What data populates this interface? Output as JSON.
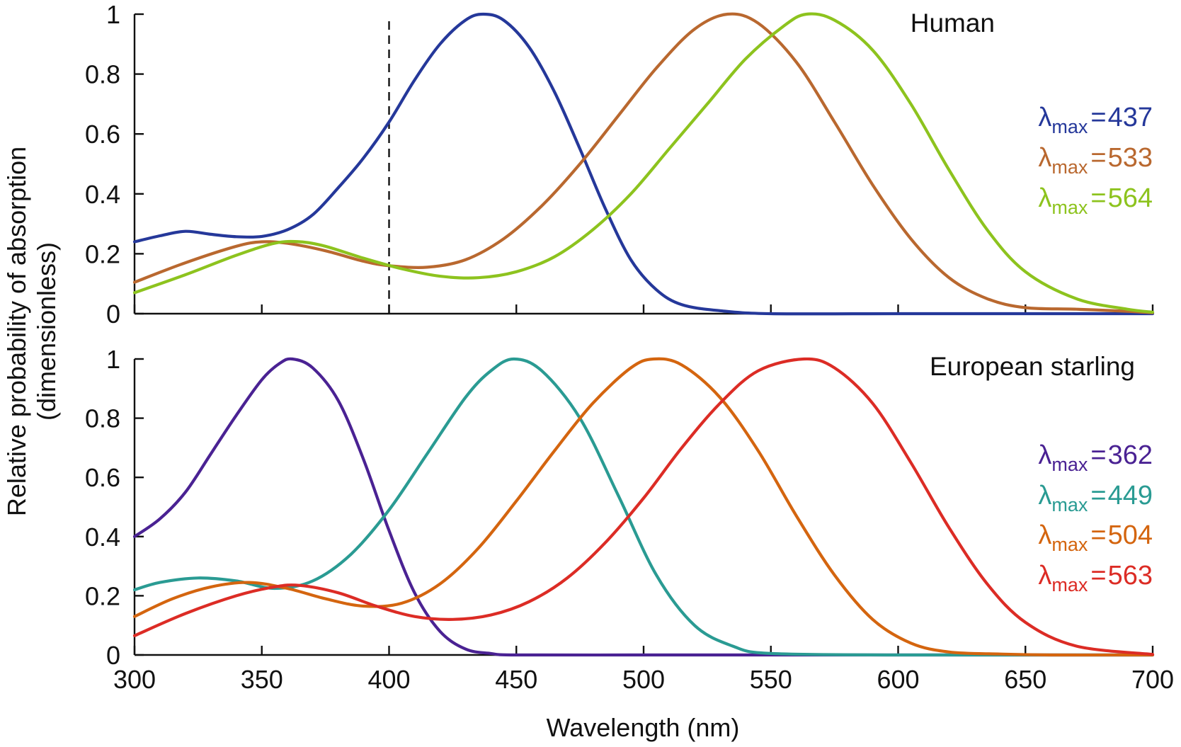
{
  "figure": {
    "ylabel_line1": "Relative  probability of absorption",
    "ylabel_line2": "(dimensionless)",
    "xlabel": "Wavelength (nm)"
  },
  "chart_data": [
    {
      "type": "line",
      "title": "Human",
      "xlabel": "Wavelength (nm)",
      "ylabel": "Relative  probability of absorption (dimensionless)",
      "xlim": [
        300,
        700
      ],
      "ylim": [
        0,
        1
      ],
      "x_ticks": [
        300,
        350,
        400,
        450,
        500,
        550,
        600,
        650,
        700
      ],
      "y_ticks": [
        "0",
        "0.2",
        "0.4",
        "0.6",
        "0.8",
        "1"
      ],
      "reference_line_x": 400,
      "legend_position": "right",
      "series": [
        {
          "label": "λmax = 437",
          "lambda_max": "437",
          "color": "#25389a",
          "x": [
            300,
            310,
            320,
            330,
            340,
            350,
            360,
            370,
            380,
            390,
            400,
            410,
            420,
            430,
            437,
            445,
            455,
            465,
            475,
            485,
            495,
            505,
            515,
            530,
            550,
            600,
            650,
            700
          ],
          "y": [
            0.24,
            0.26,
            0.275,
            0.265,
            0.257,
            0.258,
            0.28,
            0.33,
            0.42,
            0.52,
            0.64,
            0.78,
            0.9,
            0.98,
            1.0,
            0.98,
            0.89,
            0.74,
            0.55,
            0.35,
            0.18,
            0.08,
            0.03,
            0.01,
            0.0,
            0.0,
            0.0,
            0.0
          ]
        },
        {
          "label": "λmax = 533",
          "lambda_max": "533",
          "color": "#b9682f",
          "x": [
            300,
            320,
            340,
            350,
            360,
            375,
            390,
            400,
            415,
            430,
            445,
            460,
            475,
            490,
            505,
            520,
            533,
            545,
            560,
            575,
            590,
            605,
            620,
            635,
            650,
            670,
            690,
            700
          ],
          "y": [
            0.105,
            0.17,
            0.225,
            0.24,
            0.235,
            0.21,
            0.175,
            0.16,
            0.155,
            0.18,
            0.25,
            0.36,
            0.5,
            0.66,
            0.82,
            0.95,
            1.0,
            0.97,
            0.84,
            0.64,
            0.43,
            0.25,
            0.12,
            0.05,
            0.02,
            0.015,
            0.008,
            0.003
          ]
        },
        {
          "label": "λmax = 564",
          "lambda_max": "564",
          "color": "#8dc31e",
          "x": [
            300,
            320,
            340,
            355,
            365,
            375,
            390,
            405,
            420,
            435,
            450,
            465,
            480,
            495,
            510,
            525,
            540,
            555,
            564,
            575,
            590,
            605,
            620,
            635,
            650,
            670,
            690,
            700
          ],
          "y": [
            0.07,
            0.13,
            0.195,
            0.235,
            0.24,
            0.225,
            0.185,
            0.15,
            0.125,
            0.12,
            0.14,
            0.19,
            0.28,
            0.4,
            0.55,
            0.7,
            0.85,
            0.96,
            1.0,
            0.98,
            0.88,
            0.7,
            0.48,
            0.28,
            0.14,
            0.05,
            0.015,
            0.005
          ]
        }
      ]
    },
    {
      "type": "line",
      "title": "European starling",
      "xlabel": "Wavelength (nm)",
      "ylabel": "Relative  probability of absorption (dimensionless)",
      "xlim": [
        300,
        700
      ],
      "ylim": [
        0,
        1
      ],
      "x_ticks": [
        300,
        350,
        400,
        450,
        500,
        550,
        600,
        650,
        700
      ],
      "y_ticks": [
        "0",
        "0.2",
        "0.4",
        "0.6",
        "0.8",
        "1"
      ],
      "legend_position": "right",
      "series": [
        {
          "label": "λmax = 362",
          "lambda_max": "362",
          "color": "#4a2293",
          "x": [
            300,
            310,
            320,
            330,
            340,
            350,
            357,
            362,
            370,
            380,
            390,
            400,
            410,
            420,
            430,
            440,
            450,
            500,
            550,
            600,
            650,
            700
          ],
          "y": [
            0.4,
            0.46,
            0.55,
            0.68,
            0.81,
            0.93,
            0.985,
            1.0,
            0.97,
            0.86,
            0.66,
            0.42,
            0.21,
            0.08,
            0.02,
            0.005,
            0.0,
            0.0,
            0.0,
            0.0,
            0.0,
            0.0
          ]
        },
        {
          "label": "λmax = 449",
          "lambda_max": "449",
          "color": "#2a9b93",
          "x": [
            300,
            310,
            325,
            340,
            355,
            370,
            385,
            400,
            415,
            430,
            440,
            449,
            460,
            475,
            490,
            505,
            520,
            535,
            550,
            600,
            650,
            700
          ],
          "y": [
            0.22,
            0.245,
            0.26,
            0.25,
            0.225,
            0.25,
            0.34,
            0.49,
            0.68,
            0.87,
            0.96,
            1.0,
            0.96,
            0.8,
            0.54,
            0.27,
            0.1,
            0.03,
            0.005,
            0.0,
            0.0,
            0.0
          ]
        },
        {
          "label": "λmax = 504",
          "lambda_max": "504",
          "color": "#d4650f",
          "x": [
            300,
            315,
            330,
            345,
            360,
            375,
            390,
            405,
            420,
            435,
            450,
            465,
            480,
            495,
            504,
            515,
            530,
            545,
            560,
            575,
            590,
            605,
            620,
            640,
            660,
            700
          ],
          "y": [
            0.13,
            0.19,
            0.23,
            0.245,
            0.225,
            0.19,
            0.165,
            0.175,
            0.24,
            0.36,
            0.52,
            0.69,
            0.85,
            0.97,
            1.0,
            0.98,
            0.87,
            0.69,
            0.47,
            0.27,
            0.12,
            0.04,
            0.01,
            0.003,
            0.0,
            0.0
          ]
        },
        {
          "label": "λmax = 563",
          "lambda_max": "563",
          "color": "#dc2c25",
          "x": [
            300,
            320,
            340,
            355,
            365,
            380,
            395,
            410,
            425,
            440,
            455,
            470,
            485,
            500,
            515,
            530,
            545,
            563,
            575,
            590,
            605,
            620,
            635,
            650,
            670,
            700
          ],
          "y": [
            0.065,
            0.14,
            0.2,
            0.23,
            0.235,
            0.21,
            0.165,
            0.13,
            0.12,
            0.135,
            0.18,
            0.26,
            0.38,
            0.53,
            0.7,
            0.85,
            0.96,
            1.0,
            0.97,
            0.85,
            0.65,
            0.43,
            0.24,
            0.11,
            0.03,
            0.002
          ]
        }
      ]
    }
  ]
}
